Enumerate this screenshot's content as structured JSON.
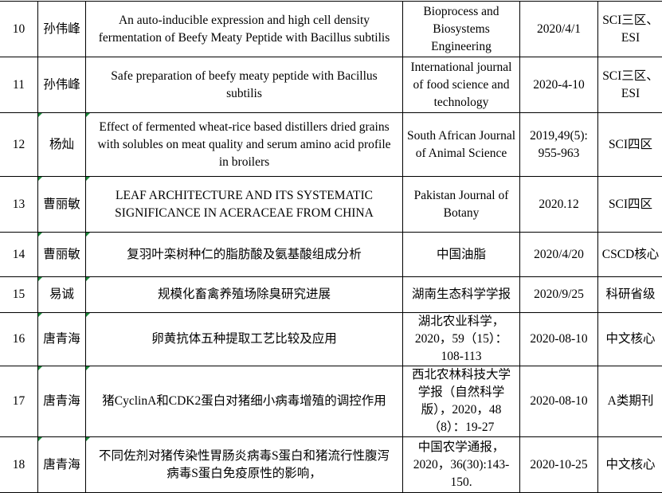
{
  "rows": [
    {
      "no": "10",
      "author": "孙伟峰",
      "title": "An auto-inducible expression and high cell density fermentation of Beefy Meaty Peptide with Bacillus subtilis",
      "journal": "Bioprocess and Biosystems Engineering",
      "date": "2020/4/1",
      "level": "SCI三区、ESI"
    },
    {
      "no": "11",
      "author": "孙伟峰",
      "title": "Safe preparation of beefy meaty peptide with Bacillus subtilis",
      "journal": "International journal of food science and technology",
      "date": "2020-4-10",
      "level": "SCI三区、ESI"
    },
    {
      "no": "12",
      "author": "杨灿",
      "title": "Effect of fermented wheat-rice based distillers dried grains with solubles on meat quality and serum amino acid profile in broilers",
      "journal": "South African Journal of Animal Science",
      "date": "2019,49(5): 955-963",
      "level": "SCI四区"
    },
    {
      "no": "13",
      "author": "曹丽敏",
      "title": "LEAF ARCHITECTURE AND ITS SYSTEMATIC SIGNIFICANCE IN ACERACEAE FROM CHINA",
      "journal": "Pakistan Journal of Botany",
      "date": "2020.12",
      "level": "SCI四区"
    },
    {
      "no": "14",
      "author": "曹丽敏",
      "title": "复羽叶栾树种仁的脂肪酸及氨基酸组成分析",
      "journal": "中国油脂",
      "date": "2020/4/20",
      "level": "CSCD核心"
    },
    {
      "no": "15",
      "author": "易诚",
      "title": "规模化畜禽养殖场除臭研究进展",
      "journal": "湖南生态科学学报",
      "date": "2020/9/25",
      "level": "科研省级"
    },
    {
      "no": "16",
      "author": "唐青海",
      "title": "卵黄抗体五种提取工艺比较及应用",
      "journal": "湖北农业科学，2020，59（15）：108-113",
      "date": "2020-08-10",
      "level": "中文核心"
    },
    {
      "no": "17",
      "author": "唐青海",
      "title": "猪CyclinA和CDK2蛋白对猪细小病毒增殖的调控作用",
      "journal": "西北农林科技大学学报（自然科学版），2020，48（8）：19-27",
      "date": "2020-08-10",
      "level": "A类期刊"
    },
    {
      "no": "18",
      "author": "唐青海",
      "title": "不同佐剂对猪传染性胃肠炎病毒S蛋白和猪流行性腹泻病毒S蛋白免疫原性的影响，",
      "journal": "中国农学通报，2020，36(30):143-150.",
      "date": "2020-10-25",
      "level": "中文核心"
    }
  ]
}
